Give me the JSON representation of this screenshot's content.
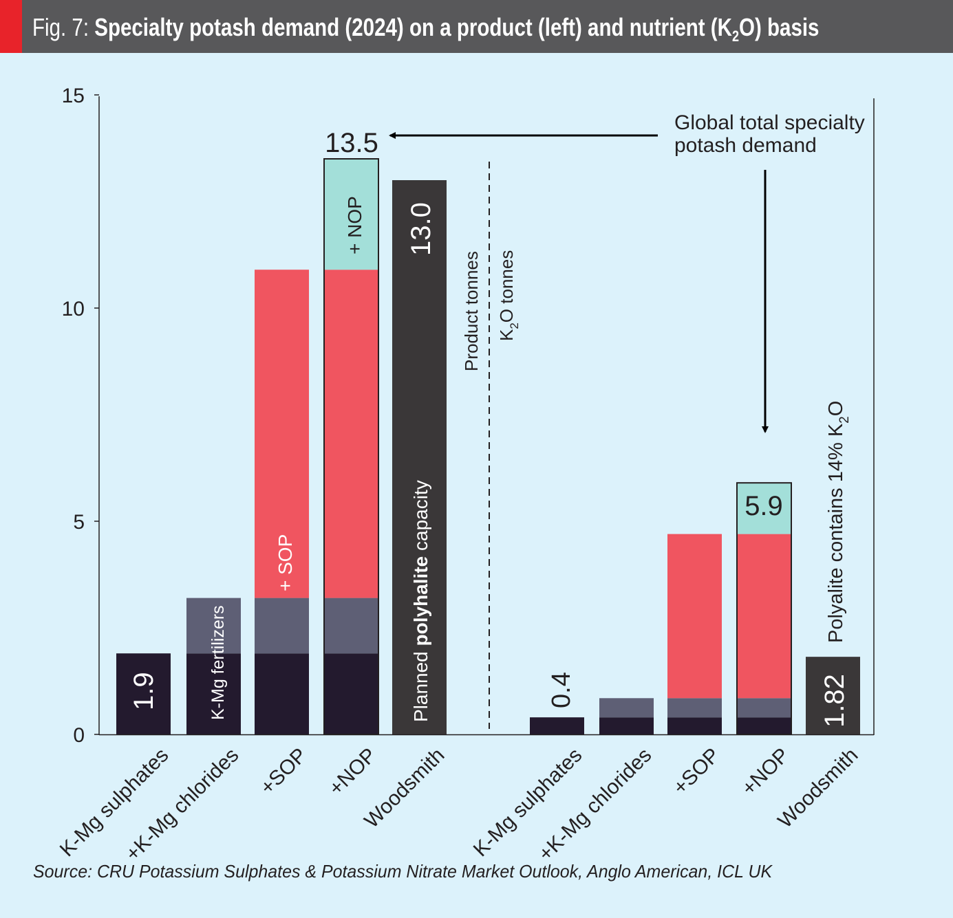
{
  "title": {
    "prefix": "Fig. 7:",
    "main": "Specialty potash demand (2024) on a product (left) and nutrient (K",
    "sub": "2",
    "end": "O) basis"
  },
  "source": "Source: CRU Potassium Sulphates & Potassium Nitrate Market Outlook, Anglo American, ICL UK",
  "colors": {
    "background": "#dcf2fb",
    "title_bar": "#58585a",
    "accent_red": "#e8232a",
    "kmg_sulphates": "#231a2e",
    "kmg_chlorides": "#5e5f75",
    "sop": "#f05560",
    "nop": "#a3dfd9",
    "woodsmith": "#3a3738"
  },
  "annotations": {
    "global_total": [
      "Global total specialty",
      "potash demand"
    ],
    "product_tonnes": "Product tonnes",
    "k2o_tonnes_main": "K",
    "k2o_tonnes_sub": "2",
    "k2o_tonnes_end": "O tonnes",
    "total_label_left": "13.5",
    "kmg_fert_label": "K-Mg fertilizers",
    "sop_label": "+ SOP",
    "nop_label": "+ NOP",
    "polyhalite_pre": "Planned ",
    "polyhalite_bold": "polyhalite",
    "polyhalite_post": " capacity",
    "polyalite_note_main": "Polyalite contains 14% K",
    "polyalite_note_sub": "2",
    "polyalite_note_end": "O"
  },
  "chart_data": {
    "type": "bar",
    "stacked": true,
    "ylim": [
      0,
      15
    ],
    "yticks": [
      0,
      5,
      10,
      15
    ],
    "grid": false,
    "groups": [
      {
        "name": "Product tonnes",
        "categories": [
          "K-Mg sulphates",
          "+K-Mg chlorides",
          "+SOP",
          "+NOP",
          "Woodsmith"
        ],
        "series": [
          {
            "name": "K-Mg sulphates",
            "values": [
              1.9,
              1.9,
              1.9,
              1.9,
              0
            ]
          },
          {
            "name": "K-Mg chlorides",
            "values": [
              0,
              1.3,
              1.3,
              1.3,
              0
            ]
          },
          {
            "name": "SOP",
            "values": [
              0,
              0,
              7.7,
              7.7,
              0
            ]
          },
          {
            "name": "NOP",
            "values": [
              0,
              0,
              0,
              2.6,
              0
            ]
          },
          {
            "name": "Woodsmith",
            "values": [
              0,
              0,
              0,
              0,
              13.0
            ]
          }
        ],
        "data_labels": [
          "1.9",
          "",
          "",
          "13.5",
          "13.0"
        ]
      },
      {
        "name": "K2O tonnes",
        "categories": [
          "K-Mg sulphates",
          "+K-Mg chlorides",
          "+SOP",
          "+NOP",
          "Woodsmith"
        ],
        "series": [
          {
            "name": "K-Mg sulphates",
            "values": [
              0.4,
              0.4,
              0.4,
              0.4,
              0
            ]
          },
          {
            "name": "K-Mg chlorides",
            "values": [
              0,
              0.45,
              0.45,
              0.45,
              0
            ]
          },
          {
            "name": "SOP",
            "values": [
              0,
              0,
              3.85,
              3.85,
              0
            ]
          },
          {
            "name": "NOP",
            "values": [
              0,
              0,
              0,
              1.2,
              0
            ]
          },
          {
            "name": "Woodsmith",
            "values": [
              0,
              0,
              0,
              0,
              1.82
            ]
          }
        ],
        "data_labels": [
          "0.4",
          "",
          "",
          "5.9",
          "1.82"
        ]
      }
    ]
  }
}
